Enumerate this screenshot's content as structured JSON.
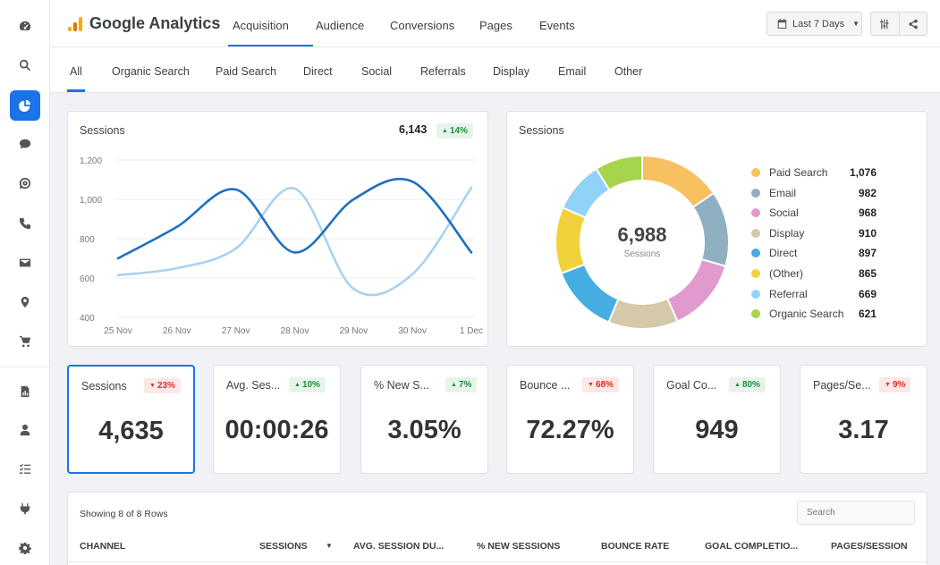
{
  "app": {
    "title": "Google Analytics",
    "logo_colors": [
      "#f9ab00",
      "#e37400",
      "#f9ab00"
    ]
  },
  "sidebar": {
    "items": [
      {
        "icon": "dashboard-icon"
      },
      {
        "icon": "search-icon"
      },
      {
        "icon": "pie-chart-icon",
        "active": true
      },
      {
        "icon": "chat-bubble-icon"
      },
      {
        "icon": "target-chat-icon"
      },
      {
        "icon": "phone-icon"
      },
      {
        "icon": "mail-icon"
      },
      {
        "icon": "map-pin-icon"
      },
      {
        "icon": "cart-icon"
      },
      {
        "icon": "report-icon"
      },
      {
        "icon": "user-icon"
      },
      {
        "icon": "checklist-icon"
      },
      {
        "icon": "plug-icon"
      },
      {
        "icon": "gear-icon"
      }
    ]
  },
  "header": {
    "tabs": [
      "Acquisition",
      "Audience",
      "Conversions",
      "Pages",
      "Events"
    ],
    "active_tab": "Acquisition",
    "date_range": "Last 7 Days"
  },
  "subtabs": {
    "items": [
      "All",
      "Organic Search",
      "Paid Search",
      "Direct",
      "Social",
      "Referrals",
      "Display",
      "Email",
      "Other"
    ],
    "active": "All"
  },
  "line_card": {
    "title": "Sessions",
    "total": "6,143",
    "change": "14%",
    "direction": "up"
  },
  "donut_card": {
    "title": "Sessions",
    "center_value": "6,988",
    "center_label": "Sessions"
  },
  "chart_data": [
    {
      "type": "line",
      "title": "Sessions",
      "x": [
        "25 Nov",
        "26 Nov",
        "27 Nov",
        "28 Nov",
        "29 Nov",
        "30 Nov",
        "1 Dec"
      ],
      "y_ticks": [
        "1,200",
        "1,000",
        "800",
        "600",
        "400"
      ],
      "ylim": [
        400,
        1200
      ],
      "grid": true,
      "series": [
        {
          "color": "#1f6fbf",
          "values": [
            700,
            860,
            1050,
            730,
            1000,
            1090,
            730
          ]
        },
        {
          "color": "#a9d2f0",
          "values": [
            615,
            650,
            750,
            1055,
            545,
            620,
            1060
          ]
        }
      ]
    },
    {
      "type": "pie",
      "title": "Sessions",
      "total": "6,988",
      "slices": [
        {
          "label": "Paid Search",
          "value": 1076,
          "display": "1,076",
          "color": "#f7c061"
        },
        {
          "label": "Email",
          "value": 982,
          "display": "982",
          "color": "#8fb0c0"
        },
        {
          "label": "Social",
          "value": 968,
          "display": "968",
          "color": "#e09acd"
        },
        {
          "label": "Display",
          "value": 910,
          "display": "910",
          "color": "#d4c9a9"
        },
        {
          "label": "Direct",
          "value": 897,
          "display": "897",
          "color": "#45ade1"
        },
        {
          "label": "(Other)",
          "value": 865,
          "display": "865",
          "color": "#f2d23c"
        },
        {
          "label": "Referral",
          "value": 669,
          "display": "669",
          "color": "#91d3f8"
        },
        {
          "label": "Organic Search",
          "value": 621,
          "display": "621",
          "color": "#a6d44d"
        }
      ]
    }
  ],
  "kpis": [
    {
      "title": "Sessions",
      "change": "23%",
      "direction": "down",
      "value": "4,635",
      "selected": true
    },
    {
      "title": "Avg. Ses...",
      "change": "10%",
      "direction": "up",
      "value": "00:00:26"
    },
    {
      "title": "% New S...",
      "change": "7%",
      "direction": "up",
      "value": "3.05%"
    },
    {
      "title": "Bounce ...",
      "change": "68%",
      "direction": "down",
      "value": "72.27%"
    },
    {
      "title": "Goal Co...",
      "change": "80%",
      "direction": "up",
      "value": "949"
    },
    {
      "title": "Pages/Se...",
      "change": "9%",
      "direction": "down",
      "value": "3.17"
    }
  ],
  "table": {
    "showing": "Showing 8 of 8 Rows",
    "search_placeholder": "Search",
    "columns": [
      "CHANNEL",
      "SESSIONS",
      "AVG. SESSION DU...",
      "% NEW SESSIONS",
      "BOUNCE RATE",
      "GOAL COMPLETIO...",
      "PAGES/SESSION"
    ],
    "sorted_column": "SESSIONS"
  }
}
